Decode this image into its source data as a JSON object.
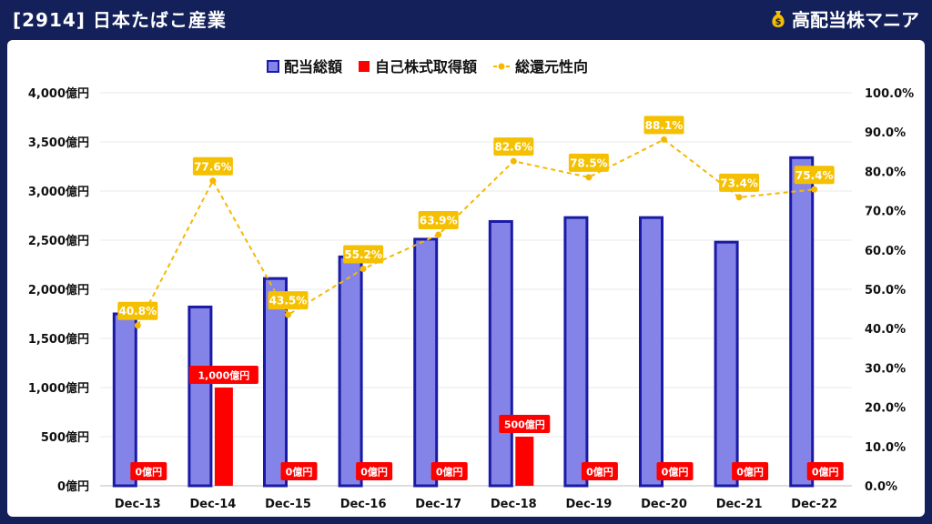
{
  "header": {
    "title": "[2914] 日本たばこ産業",
    "brand": "高配当株マニア",
    "brand_icon": "money-bag-icon"
  },
  "colors": {
    "background": "#13205a",
    "dividend_fill": "#8484e8",
    "dividend_stroke": "#1a1aa6",
    "buyback": "#ff0000",
    "payout_line": "#f5b800",
    "payout_label_bg": "#f5c000"
  },
  "chart_data": {
    "type": "bar",
    "categories": [
      "Dec-13",
      "Dec-14",
      "Dec-15",
      "Dec-16",
      "Dec-17",
      "Dec-18",
      "Dec-19",
      "Dec-20",
      "Dec-21",
      "Dec-22"
    ],
    "series": [
      {
        "name": "配当総額",
        "axis": "left",
        "type": "bar",
        "values": [
          1750,
          1820,
          2110,
          2330,
          2510,
          2690,
          2730,
          2730,
          2480,
          3340
        ]
      },
      {
        "name": "自己株式取得額",
        "axis": "left",
        "type": "bar",
        "values": [
          0,
          1000,
          0,
          0,
          0,
          500,
          0,
          0,
          0,
          0
        ],
        "labels": [
          "0億円",
          "1,000億円",
          "0億円",
          "0億円",
          "0億円",
          "500億円",
          "0億円",
          "0億円",
          "0億円",
          "0億円"
        ]
      },
      {
        "name": "総還元性向",
        "axis": "right",
        "type": "line",
        "values": [
          40.8,
          77.6,
          43.5,
          55.2,
          63.9,
          82.6,
          78.5,
          88.1,
          73.4,
          75.4
        ],
        "labels": [
          "40.8%",
          "77.6%",
          "43.5%",
          "55.2%",
          "63.9%",
          "82.6%",
          "78.5%",
          "88.1%",
          "73.4%",
          "75.4%"
        ]
      }
    ],
    "y_left": {
      "range": [
        0,
        4000
      ],
      "ticks": [
        0,
        500,
        1000,
        1500,
        2000,
        2500,
        3000,
        3500,
        4000
      ],
      "tick_labels": [
        "0億円",
        "500億円",
        "1,000億円",
        "1,500億円",
        "2,000億円",
        "2,500億円",
        "3,000億円",
        "3,500億円",
        "4,000億円"
      ]
    },
    "y_right": {
      "range": [
        0,
        100
      ],
      "ticks": [
        0,
        10,
        20,
        30,
        40,
        50,
        60,
        70,
        80,
        90,
        100
      ],
      "tick_labels": [
        "0.0%",
        "10.0%",
        "20.0%",
        "30.0%",
        "40.0%",
        "50.0%",
        "60.0%",
        "70.0%",
        "80.0%",
        "90.0%",
        "100.0%"
      ]
    },
    "grid": true,
    "legend_position": "top-center"
  }
}
